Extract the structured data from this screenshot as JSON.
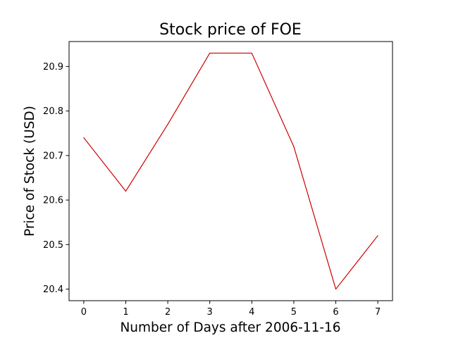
{
  "chart_data": {
    "type": "line",
    "title": "Stock price of FOE",
    "xlabel": "Number of Days after 2006-11-16",
    "ylabel": "Price of Stock (USD)",
    "x": [
      0,
      1,
      2,
      3,
      4,
      5,
      6,
      7
    ],
    "series": [
      {
        "name": "",
        "color": "#cc0000",
        "values": [
          20.74,
          20.62,
          20.77,
          20.93,
          20.93,
          20.72,
          20.4,
          20.52
        ]
      }
    ],
    "x_ticks": [
      0,
      1,
      2,
      3,
      4,
      5,
      6,
      7
    ],
    "y_ticks": [
      20.4,
      20.5,
      20.6,
      20.7,
      20.8,
      20.9
    ],
    "xlim": [
      -0.35,
      7.35
    ],
    "ylim": [
      20.374,
      20.956
    ],
    "grid": false,
    "legend": "none"
  }
}
